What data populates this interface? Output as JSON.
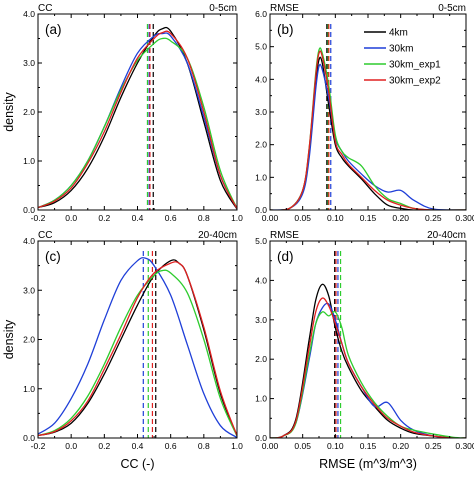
{
  "chart_data": [
    {
      "type": "line",
      "panel_label": "(a)",
      "title_left": "CC",
      "title_right": "0-5cm",
      "xlabel": "",
      "ylabel": "density",
      "xlim": [
        -0.2,
        1.0
      ],
      "ylim": [
        0,
        4.0
      ],
      "xticks": [
        "-0.2",
        "0.0",
        "0.2",
        "0.4",
        "0.6",
        "0.8",
        "1.0"
      ],
      "yticks": [
        "0.0",
        "1.0",
        "2.0",
        "3.0",
        "4.0"
      ],
      "series": [
        {
          "name": "4km",
          "color": "#000000",
          "x": [
            -0.2,
            -0.1,
            0.0,
            0.1,
            0.2,
            0.3,
            0.4,
            0.5,
            0.55,
            0.6,
            0.7,
            0.8,
            0.9,
            1.0
          ],
          "y": [
            0.05,
            0.15,
            0.4,
            0.85,
            1.5,
            2.3,
            3.0,
            3.55,
            3.7,
            3.65,
            3.0,
            1.8,
            0.6,
            0.02
          ]
        },
        {
          "name": "30km",
          "color": "#1f3fd8",
          "x": [
            -0.2,
            -0.1,
            0.0,
            0.1,
            0.2,
            0.3,
            0.4,
            0.5,
            0.55,
            0.6,
            0.7,
            0.8,
            0.9,
            1.0
          ],
          "y": [
            0.05,
            0.2,
            0.5,
            1.0,
            1.7,
            2.5,
            3.2,
            3.55,
            3.6,
            3.55,
            3.0,
            1.9,
            0.7,
            0.03
          ]
        },
        {
          "name": "30km_exp1",
          "color": "#2ecc2e",
          "x": [
            -0.2,
            -0.1,
            0.0,
            0.1,
            0.2,
            0.3,
            0.4,
            0.5,
            0.55,
            0.6,
            0.7,
            0.8,
            0.9,
            1.0
          ],
          "y": [
            0.05,
            0.2,
            0.5,
            1.0,
            1.7,
            2.45,
            3.05,
            3.4,
            3.5,
            3.45,
            3.1,
            2.1,
            0.8,
            0.03
          ]
        },
        {
          "name": "30km_exp2",
          "color": "#e02020",
          "x": [
            -0.2,
            -0.1,
            0.0,
            0.1,
            0.2,
            0.3,
            0.4,
            0.5,
            0.55,
            0.6,
            0.7,
            0.8,
            0.9,
            1.0
          ],
          "y": [
            0.05,
            0.18,
            0.45,
            0.95,
            1.6,
            2.4,
            3.1,
            3.5,
            3.62,
            3.6,
            3.1,
            2.0,
            0.7,
            0.03
          ]
        }
      ],
      "vlines": [
        {
          "series": "30km_exp1",
          "color": "#2ecc2e",
          "x": 0.46
        },
        {
          "series": "30km",
          "color": "#1f3fd8",
          "x": 0.47
        },
        {
          "series": "30km_exp2",
          "color": "#e02020",
          "x": 0.475
        },
        {
          "series": "4km",
          "color": "#000000",
          "x": 0.495
        }
      ],
      "grid": false
    },
    {
      "type": "line",
      "panel_label": "(b)",
      "title_left": "RMSE",
      "title_right": "0-5cm",
      "xlabel": "",
      "ylabel": "",
      "xlim": [
        0.0,
        0.3
      ],
      "ylim": [
        0,
        6.0
      ],
      "xticks": [
        "0.00",
        "0.05",
        "0.10",
        "0.15",
        "0.20",
        "0.25",
        "0.300"
      ],
      "yticks": [
        "0.0",
        "1.0",
        "2.0",
        "3.0",
        "4.0",
        "5.0",
        "6.0"
      ],
      "legend": {
        "placement": "top-right",
        "entries": [
          "4km",
          "30km",
          "30km_exp1",
          "30km_exp2"
        ]
      },
      "series": [
        {
          "name": "4km",
          "color": "#000000",
          "x": [
            0.0,
            0.03,
            0.05,
            0.06,
            0.07,
            0.075,
            0.08,
            0.09,
            0.1,
            0.11,
            0.12,
            0.14,
            0.16,
            0.18,
            0.2,
            0.22,
            0.25,
            0.3
          ],
          "y": [
            0.0,
            0.05,
            0.6,
            1.8,
            3.9,
            4.6,
            4.5,
            3.2,
            2.0,
            1.6,
            1.35,
            0.95,
            0.5,
            0.15,
            0.05,
            0.0,
            0.0,
            0.0
          ]
        },
        {
          "name": "30km",
          "color": "#1f3fd8",
          "x": [
            0.0,
            0.03,
            0.05,
            0.06,
            0.07,
            0.075,
            0.08,
            0.09,
            0.1,
            0.11,
            0.12,
            0.14,
            0.16,
            0.18,
            0.2,
            0.22,
            0.25,
            0.3
          ],
          "y": [
            0.0,
            0.05,
            0.5,
            1.6,
            3.7,
            4.4,
            4.3,
            3.4,
            2.2,
            1.8,
            1.5,
            1.1,
            0.75,
            0.55,
            0.6,
            0.3,
            0.03,
            0.0
          ]
        },
        {
          "name": "30km_exp1",
          "color": "#2ecc2e",
          "x": [
            0.0,
            0.03,
            0.05,
            0.06,
            0.07,
            0.075,
            0.08,
            0.09,
            0.1,
            0.11,
            0.12,
            0.14,
            0.16,
            0.18,
            0.2,
            0.22,
            0.25,
            0.3
          ],
          "y": [
            0.0,
            0.05,
            0.6,
            1.9,
            4.2,
            4.9,
            4.8,
            3.8,
            2.3,
            1.8,
            1.6,
            1.35,
            0.75,
            0.35,
            0.2,
            0.05,
            0.0,
            0.0
          ]
        },
        {
          "name": "30km_exp2",
          "color": "#e02020",
          "x": [
            0.0,
            0.03,
            0.05,
            0.06,
            0.07,
            0.075,
            0.08,
            0.09,
            0.1,
            0.11,
            0.12,
            0.14,
            0.16,
            0.18,
            0.2,
            0.22,
            0.25,
            0.3
          ],
          "y": [
            0.0,
            0.05,
            0.6,
            1.9,
            4.1,
            4.8,
            4.7,
            3.6,
            2.1,
            1.7,
            1.4,
            1.0,
            0.6,
            0.3,
            0.15,
            0.05,
            0.0,
            0.0
          ]
        }
      ],
      "vlines": [
        {
          "series": "4km",
          "color": "#000000",
          "x": 0.087
        },
        {
          "series": "30km_exp1",
          "color": "#2ecc2e",
          "x": 0.089
        },
        {
          "series": "30km_exp2",
          "color": "#e02020",
          "x": 0.09
        },
        {
          "series": "30km",
          "color": "#1f3fd8",
          "x": 0.093
        }
      ],
      "grid": false
    },
    {
      "type": "line",
      "panel_label": "(c)",
      "title_left": "CC",
      "title_right": "20-40cm",
      "xlabel": "CC (-)",
      "ylabel": "density",
      "xlim": [
        -0.2,
        1.0
      ],
      "ylim": [
        0,
        4.0
      ],
      "xticks": [
        "-0.2",
        "0.0",
        "0.2",
        "0.4",
        "0.6",
        "0.8",
        "1.0"
      ],
      "yticks": [
        "0.0",
        "1.0",
        "2.0",
        "3.0",
        "4.0"
      ],
      "series": [
        {
          "name": "4km",
          "color": "#000000",
          "x": [
            -0.2,
            -0.1,
            0.0,
            0.1,
            0.2,
            0.3,
            0.4,
            0.5,
            0.6,
            0.65,
            0.7,
            0.8,
            0.9,
            1.0
          ],
          "y": [
            0.05,
            0.12,
            0.3,
            0.7,
            1.3,
            2.0,
            2.7,
            3.3,
            3.6,
            3.55,
            3.3,
            2.2,
            0.9,
            0.05
          ]
        },
        {
          "name": "30km",
          "color": "#1f3fd8",
          "x": [
            -0.2,
            -0.1,
            0.0,
            0.1,
            0.2,
            0.3,
            0.4,
            0.45,
            0.5,
            0.6,
            0.7,
            0.8,
            0.9,
            1.0
          ],
          "y": [
            0.08,
            0.3,
            0.8,
            1.5,
            2.4,
            3.2,
            3.6,
            3.65,
            3.5,
            2.9,
            1.9,
            0.9,
            0.25,
            0.01
          ]
        },
        {
          "name": "30km_exp1",
          "color": "#2ecc2e",
          "x": [
            -0.2,
            -0.1,
            0.0,
            0.1,
            0.2,
            0.3,
            0.4,
            0.5,
            0.55,
            0.6,
            0.7,
            0.8,
            0.9,
            1.0
          ],
          "y": [
            0.05,
            0.15,
            0.4,
            0.85,
            1.5,
            2.25,
            2.9,
            3.3,
            3.4,
            3.35,
            2.95,
            2.0,
            0.8,
            0.04
          ]
        },
        {
          "name": "30km_exp2",
          "color": "#e02020",
          "x": [
            -0.2,
            -0.1,
            0.0,
            0.1,
            0.2,
            0.3,
            0.4,
            0.5,
            0.6,
            0.65,
            0.7,
            0.8,
            0.9,
            1.0
          ],
          "y": [
            0.05,
            0.13,
            0.35,
            0.75,
            1.4,
            2.1,
            2.85,
            3.35,
            3.55,
            3.55,
            3.3,
            2.25,
            0.95,
            0.05
          ]
        }
      ],
      "vlines": [
        {
          "series": "30km",
          "color": "#1f3fd8",
          "x": 0.435
        },
        {
          "series": "30km_exp1",
          "color": "#2ecc2e",
          "x": 0.465
        },
        {
          "series": "30km_exp2",
          "color": "#e02020",
          "x": 0.49
        },
        {
          "series": "4km",
          "color": "#000000",
          "x": 0.51
        }
      ],
      "grid": false
    },
    {
      "type": "line",
      "panel_label": "(d)",
      "title_left": "RMSE",
      "title_right": "20-40cm",
      "xlabel": "RMSE (m^3/m^3)",
      "ylabel": "",
      "xlim": [
        0.0,
        0.3
      ],
      "ylim": [
        0,
        5.0
      ],
      "xticks": [
        "0.00",
        "0.05",
        "0.10",
        "0.15",
        "0.20",
        "0.25",
        "0.300"
      ],
      "yticks": [
        "0.0",
        "1.0",
        "2.0",
        "3.0",
        "4.0",
        "5.0"
      ],
      "series": [
        {
          "name": "4km",
          "color": "#000000",
          "x": [
            0.0,
            0.02,
            0.04,
            0.06,
            0.07,
            0.08,
            0.09,
            0.1,
            0.11,
            0.12,
            0.14,
            0.16,
            0.18,
            0.2,
            0.22,
            0.25,
            0.28,
            0.3
          ],
          "y": [
            0.0,
            0.05,
            0.5,
            2.5,
            3.5,
            3.9,
            3.6,
            2.8,
            2.2,
            1.8,
            1.2,
            0.8,
            0.45,
            0.25,
            0.12,
            0.05,
            0.0,
            0.0
          ]
        },
        {
          "name": "30km",
          "color": "#1f3fd8",
          "x": [
            0.0,
            0.02,
            0.04,
            0.06,
            0.07,
            0.08,
            0.09,
            0.1,
            0.11,
            0.12,
            0.14,
            0.16,
            0.18,
            0.2,
            0.22,
            0.25,
            0.28,
            0.3
          ],
          "y": [
            0.0,
            0.05,
            0.4,
            2.0,
            2.9,
            3.3,
            3.4,
            3.0,
            2.4,
            1.9,
            1.3,
            0.8,
            0.9,
            0.45,
            0.2,
            0.05,
            0.0,
            0.0
          ]
        },
        {
          "name": "30km_exp1",
          "color": "#2ecc2e",
          "x": [
            0.0,
            0.02,
            0.04,
            0.06,
            0.07,
            0.08,
            0.09,
            0.1,
            0.11,
            0.12,
            0.14,
            0.16,
            0.18,
            0.2,
            0.22,
            0.25,
            0.28,
            0.3
          ],
          "y": [
            0.0,
            0.05,
            0.4,
            2.1,
            2.9,
            3.2,
            3.1,
            3.2,
            2.8,
            2.1,
            1.4,
            0.9,
            0.55,
            0.3,
            0.2,
            0.1,
            0.02,
            0.0
          ]
        },
        {
          "name": "30km_exp2",
          "color": "#e02020",
          "x": [
            0.0,
            0.02,
            0.04,
            0.06,
            0.07,
            0.08,
            0.09,
            0.1,
            0.11,
            0.12,
            0.14,
            0.16,
            0.18,
            0.2,
            0.22,
            0.25,
            0.28,
            0.3
          ],
          "y": [
            0.0,
            0.05,
            0.45,
            2.3,
            3.2,
            3.55,
            3.35,
            2.9,
            2.4,
            1.9,
            1.3,
            0.85,
            0.5,
            0.3,
            0.15,
            0.05,
            0.0,
            0.0
          ]
        }
      ],
      "vlines": [
        {
          "series": "4km",
          "color": "#000000",
          "x": 0.099
        },
        {
          "series": "30km_exp2",
          "color": "#e02020",
          "x": 0.101
        },
        {
          "series": "30km",
          "color": "#1f3fd8",
          "x": 0.104
        },
        {
          "series": "30km_exp1",
          "color": "#2ecc2e",
          "x": 0.108
        }
      ],
      "grid": false
    }
  ]
}
